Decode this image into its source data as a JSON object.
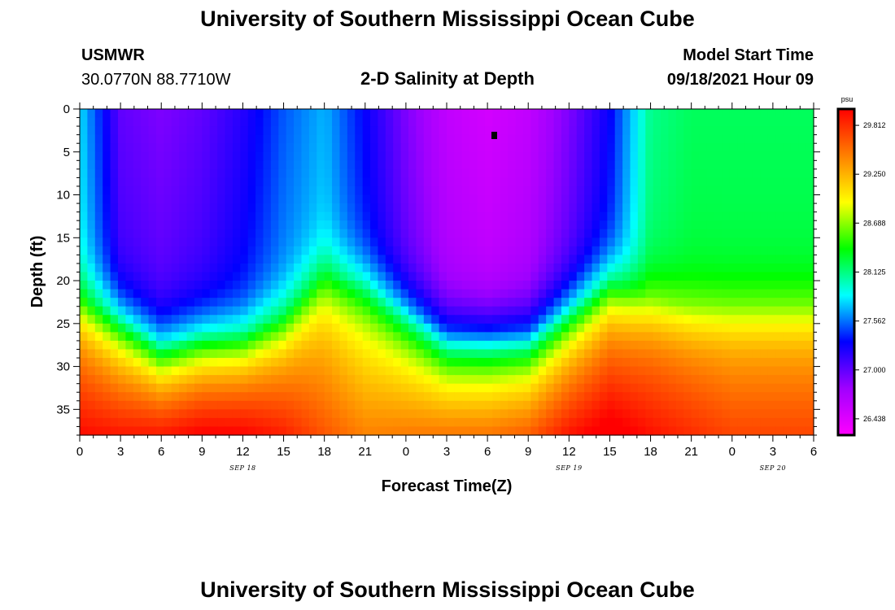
{
  "page": {
    "title_top": "University of Southern Mississippi Ocean Cube",
    "title_bottom": "University of Southern Mississippi Ocean Cube",
    "station_name": "USMWR",
    "station_coords": "30.0770N  88.7710W",
    "plot_title": "2-D Salinity at Depth",
    "model_start_label": "Model Start Time",
    "model_start_value": "09/18/2021 Hour 09"
  },
  "chart_data": {
    "type": "heatmap",
    "title": "2-D Salinity at Depth",
    "xlabel": "Forecast Time(Z)",
    "ylabel": "Depth (ft)",
    "x_tick_labels": [
      "0",
      "3",
      "6",
      "9",
      "12",
      "15",
      "18",
      "21",
      "0",
      "3",
      "6",
      "9",
      "12",
      "15",
      "18",
      "21",
      "0",
      "3",
      "6"
    ],
    "x_date_labels": [
      "SEP 18",
      "SEP 19",
      "SEP 20"
    ],
    "x_range_hours": [
      0,
      54
    ],
    "y_ticks": [
      0,
      5,
      10,
      15,
      20,
      25,
      30,
      35
    ],
    "y_range_ft": [
      0,
      38
    ],
    "y_inverted": true,
    "colorbar_unit": "psu",
    "colorbar_ticks": [
      "29.812",
      "29.250",
      "28.688",
      "28.125",
      "27.562",
      "27.000",
      "26.438"
    ],
    "value_range_psu": [
      26.25,
      30.0
    ],
    "colormap": [
      "#ff00ff",
      "#a000ff",
      "#0000ff",
      "#00ffff",
      "#00ff00",
      "#ffff00",
      "#ff8000",
      "#ff0000"
    ],
    "halocline_depth_ft": {
      "hours": [
        0,
        3,
        6,
        9,
        12,
        15,
        18,
        21,
        24,
        27,
        30,
        33,
        36,
        39,
        42,
        45,
        48,
        51,
        54
      ],
      "values": [
        22,
        24,
        27,
        26,
        26,
        24,
        19,
        20,
        23,
        26,
        26,
        26,
        23,
        20,
        22,
        23,
        23,
        23,
        23
      ]
    },
    "surface_salinity_psu": {
      "hours": [
        0,
        3,
        6,
        9,
        12,
        15,
        18,
        21,
        24,
        27,
        30,
        33,
        36,
        39,
        42,
        45,
        48,
        51,
        54
      ],
      "values": [
        27.8,
        27.0,
        26.9,
        27.0,
        27.2,
        27.5,
        27.7,
        27.3,
        26.9,
        26.6,
        26.5,
        26.6,
        26.9,
        27.3,
        28.1,
        28.2,
        28.2,
        28.2,
        28.2
      ]
    },
    "bottom_salinity_psu": {
      "hours": [
        0,
        3,
        6,
        9,
        12,
        15,
        18,
        21,
        24,
        27,
        30,
        33,
        36,
        39,
        42,
        45,
        48,
        51,
        54
      ],
      "values": [
        29.8,
        29.7,
        29.7,
        29.8,
        29.8,
        29.7,
        29.5,
        29.3,
        29.3,
        29.3,
        29.3,
        29.4,
        29.7,
        29.9,
        29.8,
        29.7,
        29.6,
        29.6,
        29.6
      ]
    }
  }
}
